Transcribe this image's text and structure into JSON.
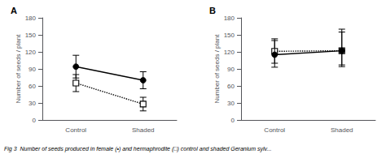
{
  "chart_data": [
    {
      "type": "line",
      "title": "A",
      "categories": [
        "Control",
        "Shaded"
      ],
      "series": [
        {
          "values": [
            65,
            28
          ],
          "error_lo": [
            15,
            12
          ],
          "error_hi": [
            15,
            12
          ],
          "color": "#000000",
          "marker": "square",
          "line_style": "dotted"
        },
        {
          "values": [
            94,
            70
          ],
          "error_lo": [
            20,
            15
          ],
          "error_hi": [
            20,
            15
          ],
          "color": "#000000",
          "marker": "circle",
          "line_style": "solid"
        }
      ],
      "ylabel": "Number of seeds / plant",
      "ylim": [
        0,
        180
      ],
      "yticks": [
        0,
        30,
        60,
        90,
        120,
        150,
        180
      ],
      "grid": false,
      "annotations": [
        "Fig 3  Number of seeds produced in female (•) and hermaphrodite (□) control and shaded Geranium sylv..."
      ]
    },
    {
      "type": "line",
      "title": "B",
      "categories": [
        "Control",
        "Shaded"
      ],
      "series": [
        {
          "values": [
            121,
            122
          ],
          "error_lo": [
            28,
            28
          ],
          "error_hi": [
            22,
            38
          ],
          "color": "#000000",
          "marker": "square",
          "line_style": "dotted"
        },
        {
          "values": [
            115,
            122
          ],
          "error_lo": [
            15,
            25
          ],
          "error_hi": [
            25,
            33
          ],
          "color": "#000000",
          "marker": "circle",
          "line_style": "solid"
        }
      ],
      "ylabel": "Number of seeds / plant",
      "ylim": [
        0,
        180
      ],
      "yticks": [
        0,
        30,
        60,
        90,
        120,
        150,
        180
      ],
      "grid": false
    }
  ]
}
